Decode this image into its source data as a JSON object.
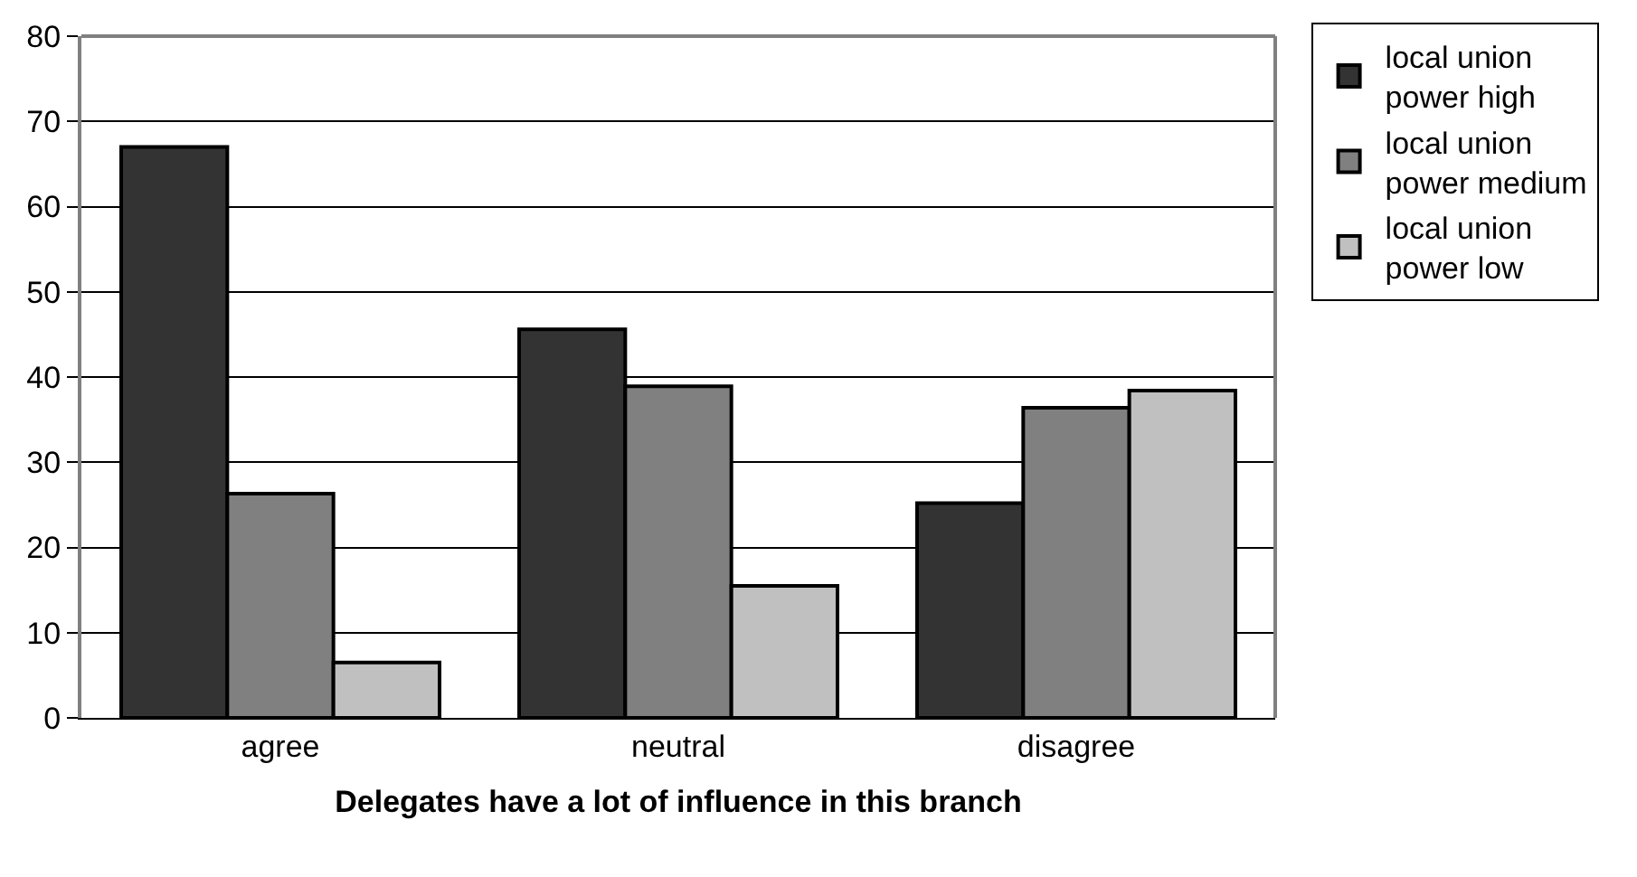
{
  "chart_data": {
    "type": "bar",
    "xlabel": "Delegates have a lot of influence in this branch",
    "categories": [
      "agree",
      "neutral",
      "disagree"
    ],
    "series": [
      {
        "name": "local union power high",
        "color": "#333333",
        "values": [
          67,
          45.6,
          25.2
        ]
      },
      {
        "name": "local union power medium",
        "color": "#808080",
        "values": [
          26.3,
          38.9,
          36.4
        ]
      },
      {
        "name": "local union power low",
        "color": "#c0c0c0",
        "values": [
          6.5,
          15.5,
          38.4
        ]
      }
    ],
    "ylim": [
      0,
      80
    ],
    "yticks": [
      0,
      10,
      20,
      30,
      40,
      50,
      60,
      70,
      80
    ],
    "grid": "y",
    "legend": "top right"
  }
}
